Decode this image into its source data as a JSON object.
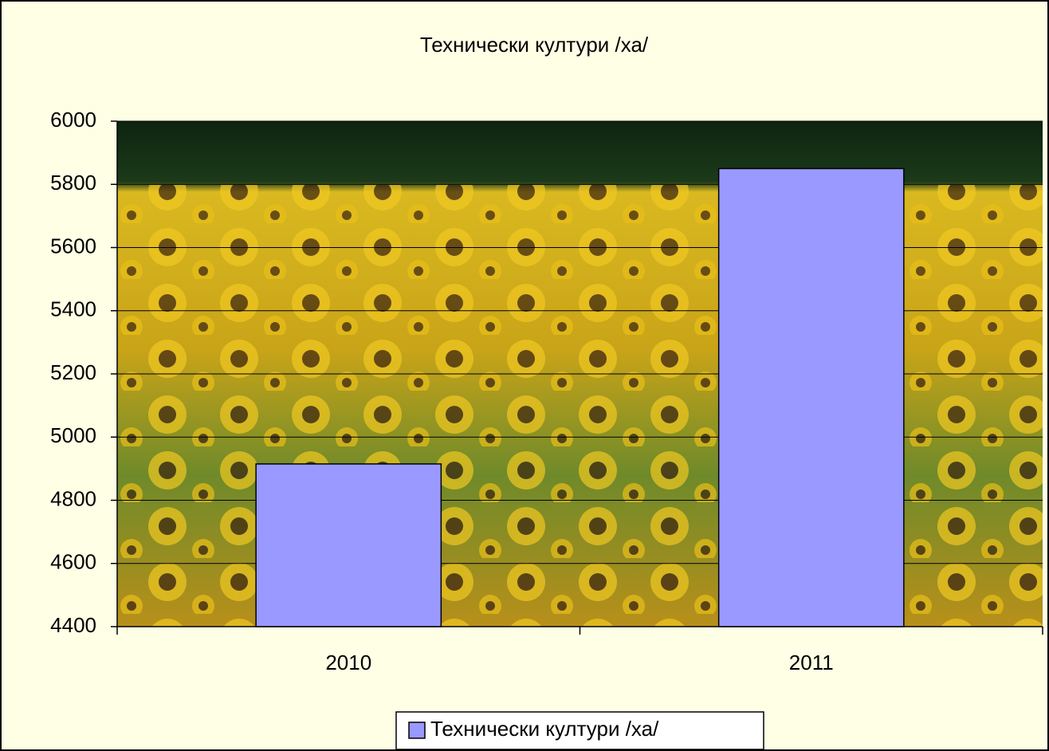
{
  "chart_data": {
    "type": "bar",
    "title": "Технически култури /ха/",
    "categories": [
      "2010",
      "2011"
    ],
    "series": [
      {
        "name": "Технически култури /ха/",
        "color": "#9999ff",
        "values": [
          4915,
          5850
        ]
      }
    ],
    "ylim": [
      4400,
      6000
    ],
    "yticks": [
      4400,
      4600,
      4800,
      5000,
      5200,
      5400,
      5600,
      5800,
      6000
    ],
    "grid": true,
    "legend": "bottom"
  }
}
